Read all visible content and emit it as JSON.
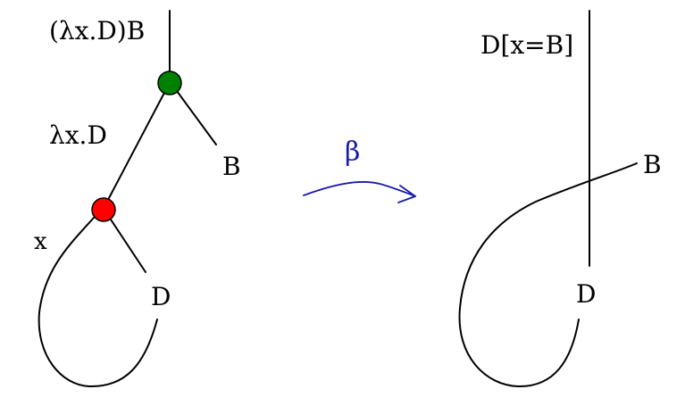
{
  "left_graph": {
    "label_root": "(λx.D)B",
    "label_lambda": "λx.D",
    "label_arg": "B",
    "label_var": "x",
    "label_body": "D",
    "app_node_color": "#008000",
    "lambda_node_color": "#ff0000"
  },
  "arrow": {
    "label": "β",
    "color": "#1a1aaa"
  },
  "right_graph": {
    "label_result": "D[x=B]",
    "label_arg": "B",
    "label_body": "D"
  }
}
